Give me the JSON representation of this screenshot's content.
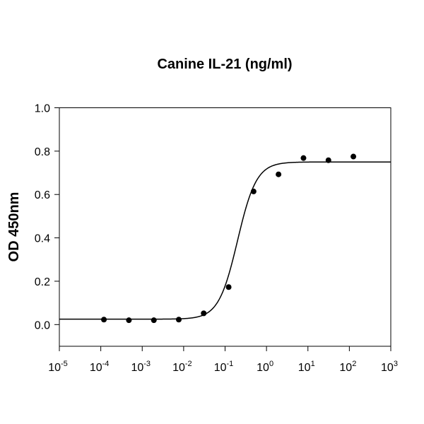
{
  "chart_data": {
    "type": "scatter",
    "title": "Canine IL-21 (ng/ml)",
    "xlabel": "",
    "ylabel": "OD 450nm",
    "xscale": "log",
    "xlim": [
      1e-05,
      1000
    ],
    "ylim": [
      -0.1,
      1.0
    ],
    "x_ticks": [
      {
        "base": "10",
        "exp": "-5",
        "value": 1e-05
      },
      {
        "base": "10",
        "exp": "-4",
        "value": 0.0001
      },
      {
        "base": "10",
        "exp": "-3",
        "value": 0.001
      },
      {
        "base": "10",
        "exp": "-2",
        "value": 0.01
      },
      {
        "base": "10",
        "exp": "-1",
        "value": 0.1
      },
      {
        "base": "10",
        "exp": "0",
        "value": 1
      },
      {
        "base": "10",
        "exp": "1",
        "value": 10
      },
      {
        "base": "10",
        "exp": "2",
        "value": 100
      },
      {
        "base": "10",
        "exp": "3",
        "value": 1000
      }
    ],
    "y_ticks": [
      "0.0",
      "0.2",
      "0.4",
      "0.6",
      "0.8",
      "1.0"
    ],
    "grid": false,
    "legend": null,
    "series": [
      {
        "name": "data",
        "marker": "filled-circle",
        "x": [
          0.000119,
          0.000477,
          0.00191,
          0.00763,
          0.0305,
          0.122,
          0.488,
          1.95,
          7.81,
          31.25,
          125
        ],
        "y": [
          0.023,
          0.02,
          0.02,
          0.023,
          0.052,
          0.173,
          0.614,
          0.693,
          0.768,
          0.758,
          0.775
        ]
      },
      {
        "name": "4PL fit",
        "type": "line",
        "params": {
          "bottom": 0.025,
          "top": 0.75,
          "ec50": 0.2,
          "hill": 1.9
        }
      }
    ]
  }
}
